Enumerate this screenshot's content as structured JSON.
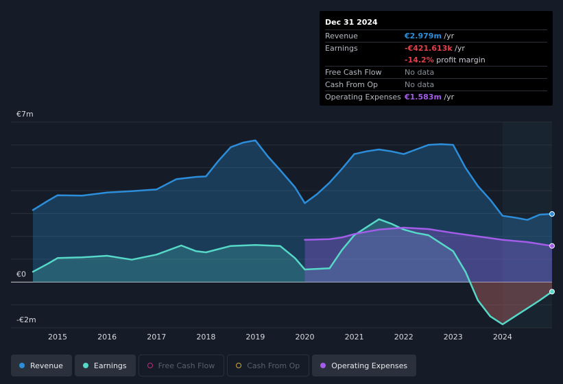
{
  "tooltip": {
    "date": "Dec 31 2024",
    "rows": [
      {
        "label": "Revenue",
        "value": "€2.979m",
        "unit": " /yr",
        "color": "#2c8eda"
      },
      {
        "label": "Earnings",
        "value": "-€421.613k",
        "unit": " /yr",
        "color": "#e4404a"
      },
      {
        "label": "",
        "value": "-14.2%",
        "unit": " profit margin",
        "color": "#e4404a"
      },
      {
        "label": "Free Cash Flow",
        "value": "No data",
        "unit": "",
        "color": "#8a9099"
      },
      {
        "label": "Cash From Op",
        "value": "No data",
        "unit": "",
        "color": "#8a9099"
      },
      {
        "label": "Operating Expenses",
        "value": "€1.583m",
        "unit": " /yr",
        "color": "#a35de8"
      }
    ]
  },
  "legend": [
    {
      "label": "Revenue",
      "color": "#2c8eda",
      "active": true
    },
    {
      "label": "Earnings",
      "color": "#56d9c8",
      "active": true
    },
    {
      "label": "Free Cash Flow",
      "color": "#c3287e",
      "active": false
    },
    {
      "label": "Cash From Op",
      "color": "#cfa83a",
      "active": false
    },
    {
      "label": "Operating Expenses",
      "color": "#a35de8",
      "active": true
    }
  ],
  "chart_data": {
    "type": "area",
    "y_unit": "€m",
    "ylim": [
      -2,
      7
    ],
    "ytick_labels": [
      {
        "value": 7,
        "label": "€7m"
      },
      {
        "value": 0,
        "label": "€0"
      },
      {
        "value": -2,
        "label": "-€2m"
      }
    ],
    "xlim": [
      2014.5,
      2025.0
    ],
    "xtick_labels": [
      "2015",
      "2016",
      "2017",
      "2018",
      "2019",
      "2020",
      "2021",
      "2022",
      "2023",
      "2024"
    ],
    "grid": true,
    "legend_position": "bottom",
    "forecast_region_start": 2024.0,
    "series": [
      {
        "name": "Revenue",
        "color": "#2c8eda",
        "points": [
          [
            2014.5,
            3.15
          ],
          [
            2014.8,
            3.55
          ],
          [
            2015.0,
            3.8
          ],
          [
            2015.5,
            3.78
          ],
          [
            2016.0,
            3.92
          ],
          [
            2016.5,
            3.98
          ],
          [
            2017.0,
            4.05
          ],
          [
            2017.4,
            4.5
          ],
          [
            2017.8,
            4.6
          ],
          [
            2018.0,
            4.62
          ],
          [
            2018.25,
            5.3
          ],
          [
            2018.5,
            5.9
          ],
          [
            2018.75,
            6.1
          ],
          [
            2019.0,
            6.2
          ],
          [
            2019.25,
            5.5
          ],
          [
            2019.5,
            4.9
          ],
          [
            2019.8,
            4.15
          ],
          [
            2020.0,
            3.45
          ],
          [
            2020.25,
            3.85
          ],
          [
            2020.5,
            4.35
          ],
          [
            2020.75,
            4.95
          ],
          [
            2021.0,
            5.6
          ],
          [
            2021.25,
            5.72
          ],
          [
            2021.5,
            5.8
          ],
          [
            2021.75,
            5.72
          ],
          [
            2022.0,
            5.6
          ],
          [
            2022.25,
            5.8
          ],
          [
            2022.5,
            6.0
          ],
          [
            2022.75,
            6.03
          ],
          [
            2023.0,
            6.0
          ],
          [
            2023.25,
            5.0
          ],
          [
            2023.5,
            4.2
          ],
          [
            2023.75,
            3.6
          ],
          [
            2024.0,
            2.9
          ],
          [
            2024.25,
            2.82
          ],
          [
            2024.5,
            2.72
          ],
          [
            2024.75,
            2.95
          ],
          [
            2025.0,
            2.979
          ]
        ]
      },
      {
        "name": "Earnings",
        "color": "#56d9c8",
        "points": [
          [
            2014.5,
            0.45
          ],
          [
            2014.8,
            0.8
          ],
          [
            2015.0,
            1.05
          ],
          [
            2015.5,
            1.08
          ],
          [
            2016.0,
            1.15
          ],
          [
            2016.5,
            0.98
          ],
          [
            2017.0,
            1.2
          ],
          [
            2017.5,
            1.6
          ],
          [
            2017.8,
            1.35
          ],
          [
            2018.0,
            1.3
          ],
          [
            2018.5,
            1.58
          ],
          [
            2019.0,
            1.62
          ],
          [
            2019.5,
            1.58
          ],
          [
            2019.8,
            1.05
          ],
          [
            2020.0,
            0.55
          ],
          [
            2020.5,
            0.6
          ],
          [
            2020.75,
            1.4
          ],
          [
            2021.0,
            2.05
          ],
          [
            2021.25,
            2.4
          ],
          [
            2021.5,
            2.75
          ],
          [
            2021.75,
            2.55
          ],
          [
            2022.0,
            2.3
          ],
          [
            2022.25,
            2.15
          ],
          [
            2022.5,
            2.05
          ],
          [
            2022.75,
            1.7
          ],
          [
            2023.0,
            1.35
          ],
          [
            2023.25,
            0.45
          ],
          [
            2023.5,
            -0.8
          ],
          [
            2023.75,
            -1.5
          ],
          [
            2024.0,
            -1.85
          ],
          [
            2024.25,
            -1.5
          ],
          [
            2024.5,
            -1.15
          ],
          [
            2024.75,
            -0.8
          ],
          [
            2025.0,
            -0.42
          ]
        ]
      },
      {
        "name": "Operating Expenses",
        "color": "#a35de8",
        "points": [
          [
            2020.0,
            1.85
          ],
          [
            2020.5,
            1.88
          ],
          [
            2020.75,
            1.95
          ],
          [
            2021.0,
            2.1
          ],
          [
            2021.5,
            2.3
          ],
          [
            2022.0,
            2.38
          ],
          [
            2022.5,
            2.32
          ],
          [
            2023.0,
            2.15
          ],
          [
            2023.5,
            2.0
          ],
          [
            2024.0,
            1.85
          ],
          [
            2024.5,
            1.75
          ],
          [
            2025.0,
            1.583
          ]
        ]
      }
    ]
  }
}
